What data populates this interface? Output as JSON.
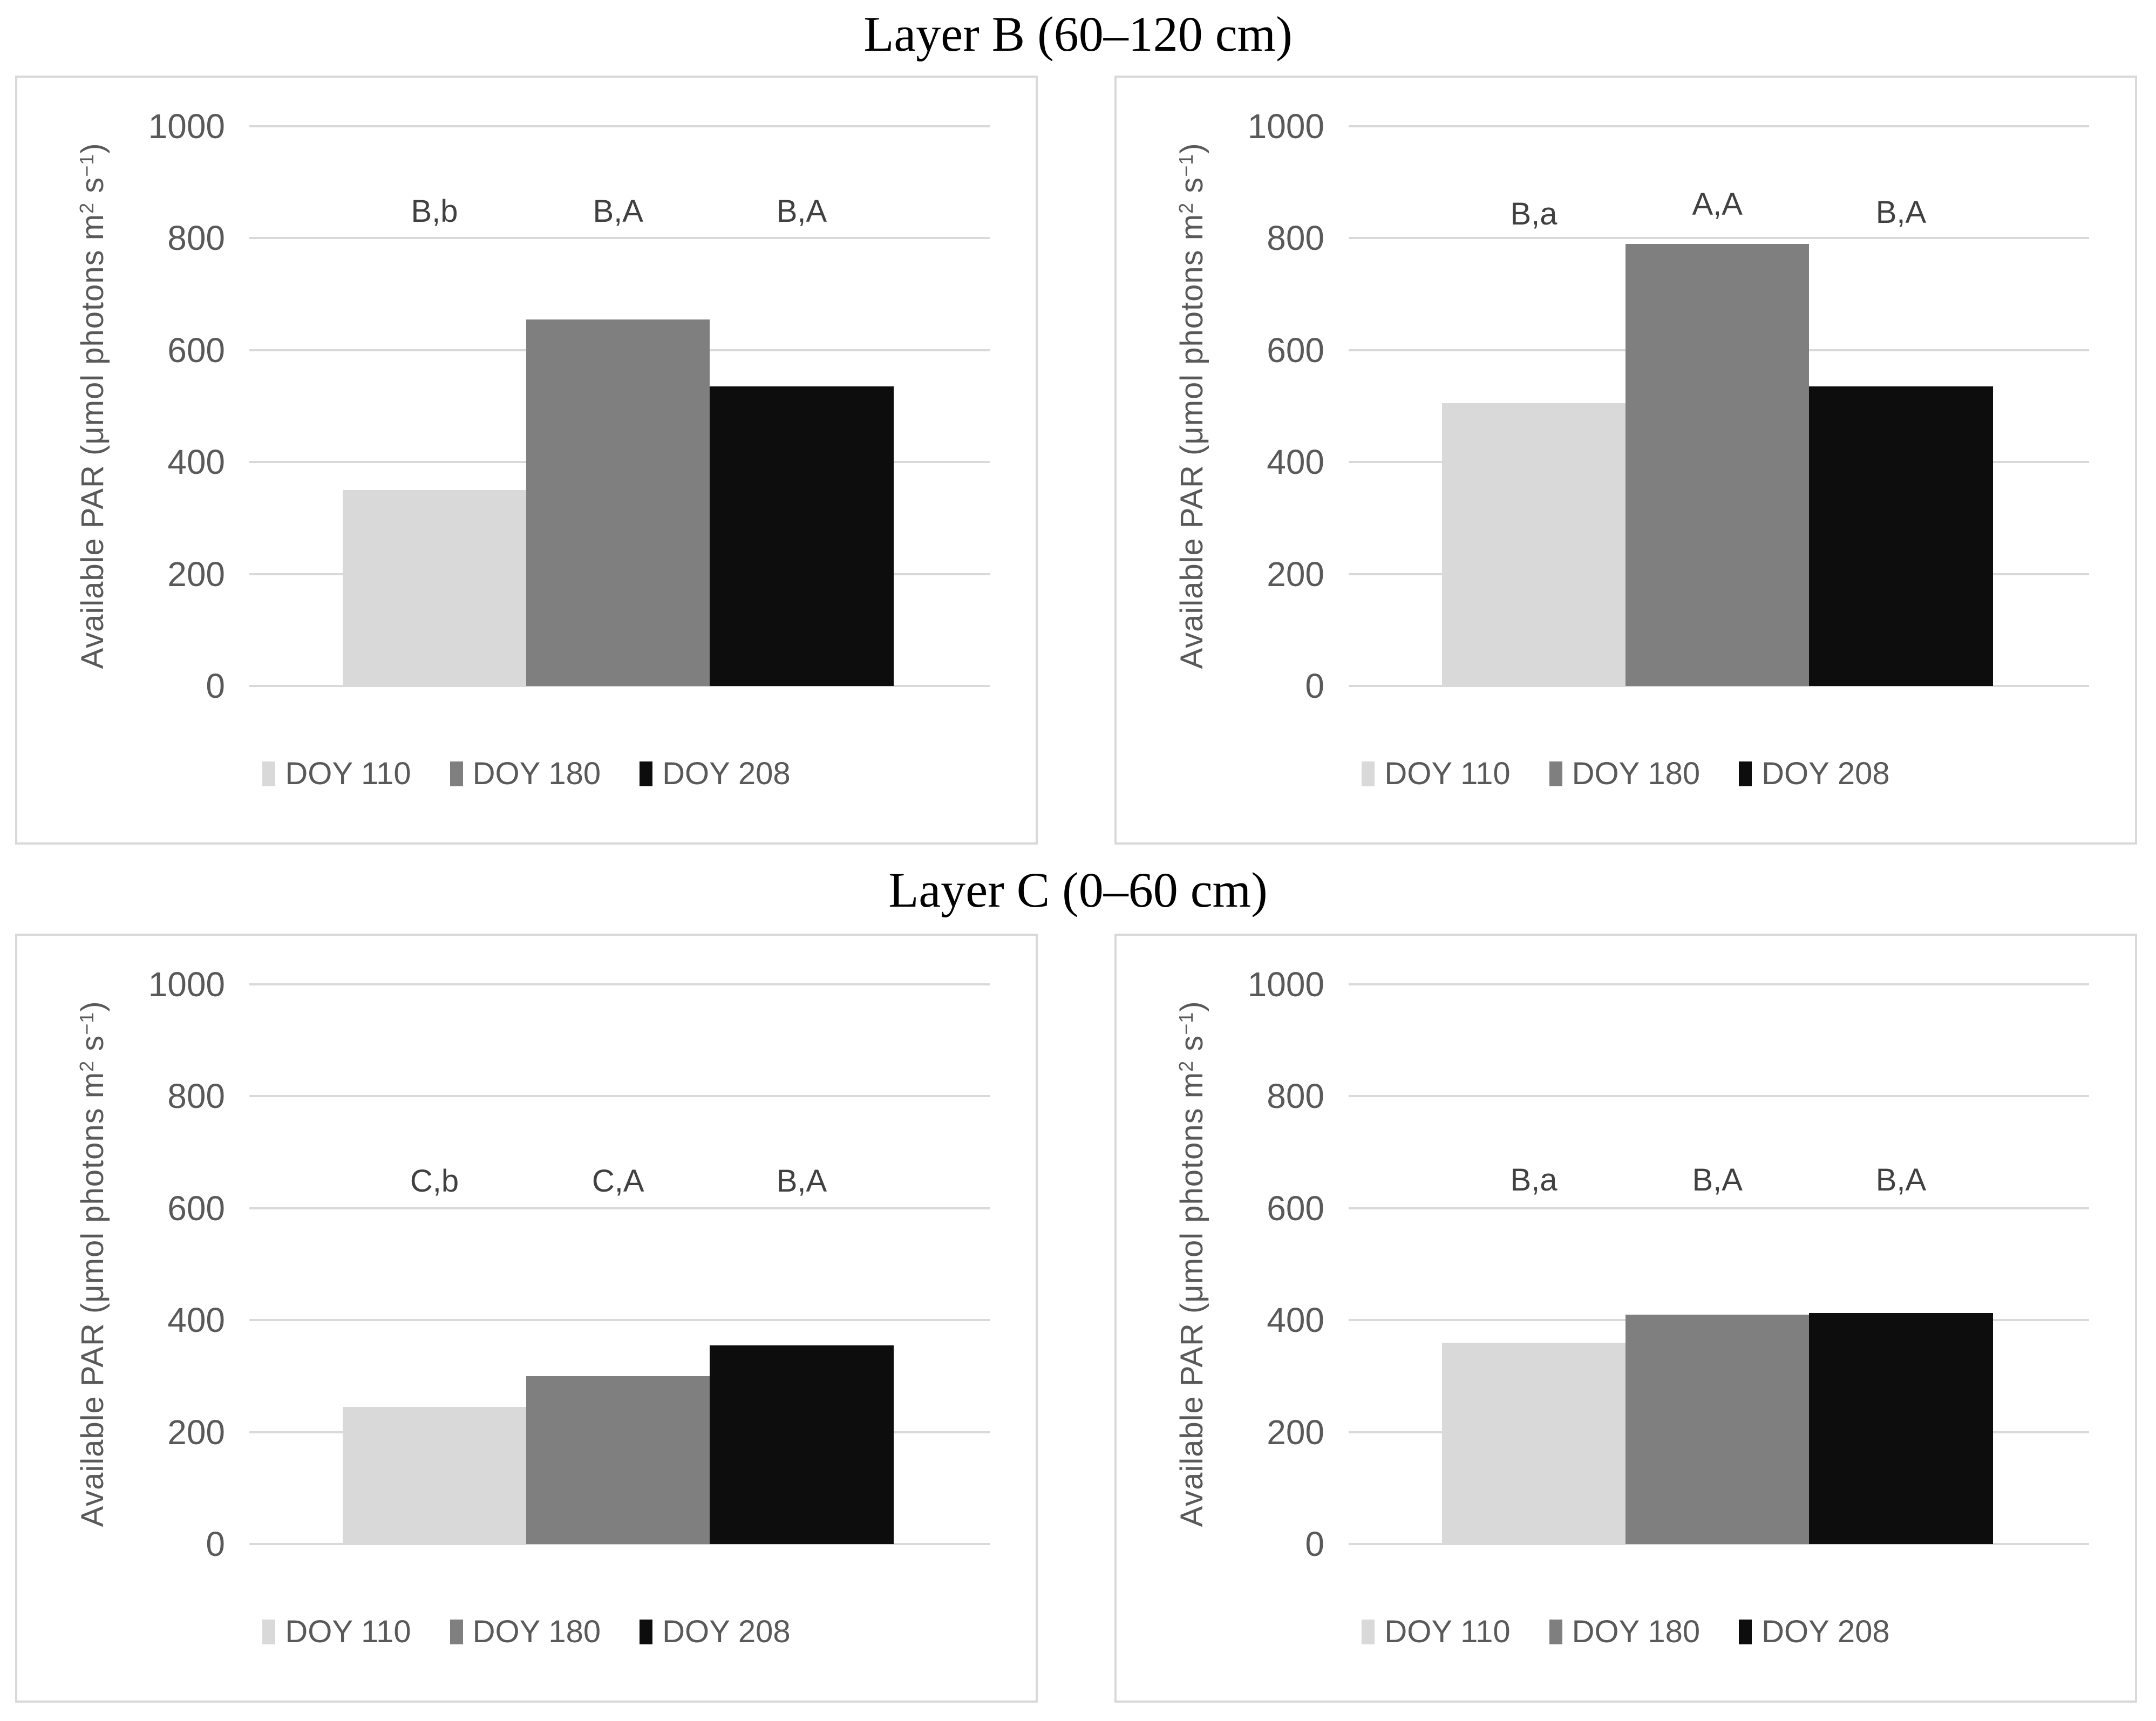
{
  "titles": {
    "layer_b": "Layer B (60–120 cm)",
    "layer_c": "Layer C (0–60 cm)"
  },
  "ylabel_text": "Available PAR (μmol photons m2 s−1)",
  "ylabel_parts": [
    {
      "t": "Available PAR (μmol photons m"
    },
    {
      "t": "2",
      "sup": true
    },
    {
      "t": " s"
    },
    {
      "t": "−1",
      "sup": true
    },
    {
      "t": ")"
    }
  ],
  "legend_labels": [
    "DOY 110",
    "DOY 180",
    "DOY 208"
  ],
  "colors": {
    "series": [
      "#d9d9d9",
      "#7f7f7f",
      "#0d0d0d"
    ],
    "gridline": "#d9d9d9",
    "axis_line": "#d9d9d9",
    "panel_border": "#d9d9d9",
    "axis_text": "#595959",
    "annotation_text": "#404040",
    "title_text": "#000000",
    "background": "#ffffff"
  },
  "chart_data": [
    {
      "type": "bar",
      "panel": "top-left",
      "group_title": "Layer B (60–120 cm)",
      "categories": [
        "DOY 110",
        "DOY 180",
        "DOY 208"
      ],
      "values": [
        350,
        655,
        535
      ],
      "annotations": [
        {
          "label": "B,b",
          "y": 820
        },
        {
          "label": "B,A",
          "y": 820
        },
        {
          "label": "B,A",
          "y": 820
        }
      ],
      "ylabel": "Available PAR (μmol photons m2 s−1)",
      "xlabel": "",
      "ylim": [
        0,
        1000
      ],
      "yticks": [
        0,
        200,
        400,
        600,
        800,
        1000
      ],
      "ytick_labels": [
        "0",
        "200",
        "400",
        "600",
        "800",
        "1000"
      ],
      "grid": true,
      "legend_position": "bottom",
      "bar_colors": [
        "#d9d9d9",
        "#7f7f7f",
        "#0d0d0d"
      ]
    },
    {
      "type": "bar",
      "panel": "top-right",
      "group_title": "Layer B (60–120 cm)",
      "categories": [
        "DOY 110",
        "DOY 180",
        "DOY 208"
      ],
      "values": [
        505,
        790,
        535
      ],
      "annotations": [
        {
          "label": "B,a",
          "y": 815
        },
        {
          "label": "A,A",
          "y": 832
        },
        {
          "label": "B,A",
          "y": 818
        }
      ],
      "ylabel": "Available PAR (μmol photons m2 s−1)",
      "xlabel": "",
      "ylim": [
        0,
        1000
      ],
      "yticks": [
        0,
        200,
        400,
        600,
        800,
        1000
      ],
      "ytick_labels": [
        "0",
        "200",
        "400",
        "600",
        "800",
        "1000"
      ],
      "grid": true,
      "legend_position": "bottom",
      "bar_colors": [
        "#d9d9d9",
        "#7f7f7f",
        "#0d0d0d"
      ]
    },
    {
      "type": "bar",
      "panel": "bottom-left",
      "group_title": "Layer C (0–60 cm)",
      "categories": [
        "DOY 110",
        "DOY 180",
        "DOY 208"
      ],
      "values": [
        245,
        300,
        355
      ],
      "annotations": [
        {
          "label": "C,b",
          "y": 620
        },
        {
          "label": "C,A",
          "y": 620
        },
        {
          "label": "B,A",
          "y": 620
        }
      ],
      "ylabel": "Available PAR (μmol photons m2 s−1)",
      "xlabel": "",
      "ylim": [
        0,
        1000
      ],
      "yticks": [
        0,
        200,
        400,
        600,
        800,
        1000
      ],
      "ytick_labels": [
        "0",
        "200",
        "400",
        "600",
        "800",
        "1000"
      ],
      "grid": true,
      "legend_position": "bottom",
      "bar_colors": [
        "#d9d9d9",
        "#7f7f7f",
        "#0d0d0d"
      ]
    },
    {
      "type": "bar",
      "panel": "bottom-right",
      "group_title": "Layer C (0–60 cm)",
      "categories": [
        "DOY 110",
        "DOY 180",
        "DOY 208"
      ],
      "values": [
        360,
        410,
        413
      ],
      "annotations": [
        {
          "label": "B,a",
          "y": 622
        },
        {
          "label": "B,A",
          "y": 622
        },
        {
          "label": "B,A",
          "y": 622
        }
      ],
      "ylabel": "Available PAR (μmol photons m2 s−1)",
      "xlabel": "",
      "ylim": [
        0,
        1000
      ],
      "yticks": [
        0,
        200,
        400,
        600,
        800,
        1000
      ],
      "ytick_labels": [
        "0",
        "200",
        "400",
        "600",
        "800",
        "1000"
      ],
      "grid": true,
      "legend_position": "bottom",
      "bar_colors": [
        "#d9d9d9",
        "#7f7f7f",
        "#0d0d0d"
      ]
    }
  ]
}
